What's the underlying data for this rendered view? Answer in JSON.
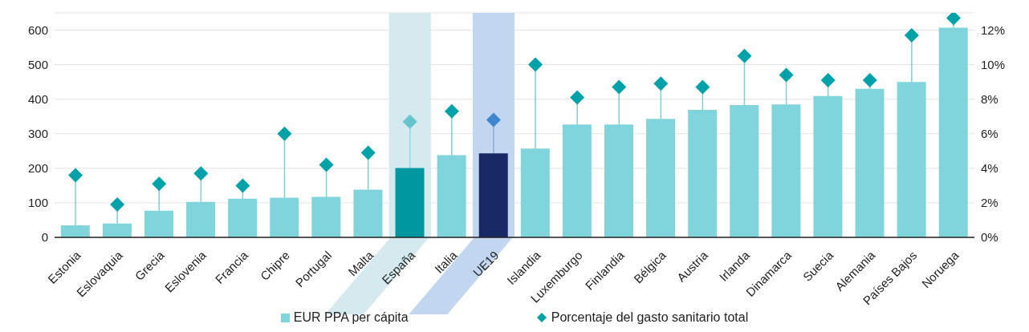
{
  "chart_data": {
    "type": "bar",
    "categories": [
      "Estonia",
      "Eslovaquia",
      "Grecia",
      "Eslovenia",
      "Francia",
      "Chipre",
      "Portugal",
      "Malta",
      "España",
      "Italia",
      "UE19",
      "Islandia",
      "Luxemburgo",
      "Finlandia",
      "Bélgica",
      "Austria",
      "Irlanda",
      "Dinamarca",
      "Suecia",
      "Alemania",
      "Países Bajos",
      "Noruega"
    ],
    "series": [
      {
        "name": "EUR PPA per cápita",
        "color": "#80d5dc",
        "colors": [
          "#80d5dc",
          "#80d5dc",
          "#80d5dc",
          "#80d5dc",
          "#80d5dc",
          "#80d5dc",
          "#80d5dc",
          "#80d5dc",
          "#0097a0",
          "#80d5dc",
          "#182864",
          "#80d5dc",
          "#80d5dc",
          "#80d5dc",
          "#80d5dc",
          "#80d5dc",
          "#80d5dc",
          "#80d5dc",
          "#80d5dc",
          "#80d5dc",
          "#80d5dc",
          "#80d5dc"
        ],
        "values": [
          35,
          40,
          77,
          103,
          112,
          115,
          117,
          138,
          201,
          238,
          243,
          257,
          327,
          327,
          343,
          369,
          383,
          385,
          409,
          430,
          450,
          607
        ]
      },
      {
        "name": "Porcentaje del gasto sanitario total",
        "type": "scatter",
        "axis": "y2",
        "marker": "diamond",
        "color": "#00a2aa",
        "colors": [
          "#00a2aa",
          "#00a2aa",
          "#00a2aa",
          "#00a2aa",
          "#00a2aa",
          "#00a2aa",
          "#00a2aa",
          "#00a2aa",
          "#66c4cc",
          "#00a2aa",
          "#3f86d0",
          "#00a2aa",
          "#00a2aa",
          "#00a2aa",
          "#00a2aa",
          "#00a2aa",
          "#00a2aa",
          "#00a2aa",
          "#00a2aa",
          "#00a2aa",
          "#00a2aa",
          "#00a2aa"
        ],
        "values": [
          3.6,
          1.9,
          3.1,
          3.7,
          3.0,
          6.0,
          4.2,
          4.9,
          6.7,
          7.3,
          6.8,
          10.0,
          8.1,
          8.7,
          8.9,
          8.7,
          10.5,
          9.4,
          9.1,
          9.1,
          11.7,
          12.7
        ]
      }
    ],
    "ylim": [
      0,
      650
    ],
    "yticks": [
      0,
      100,
      200,
      300,
      400,
      500,
      600
    ],
    "y2lim": [
      0,
      13
    ],
    "y2ticks": [
      {
        "value": 0,
        "label": "0%"
      },
      {
        "value": 2,
        "label": "2%"
      },
      {
        "value": 4,
        "label": "4%"
      },
      {
        "value": 6,
        "label": "6%"
      },
      {
        "value": 8,
        "label": "8%"
      },
      {
        "value": 10,
        "label": "10%"
      },
      {
        "value": 12,
        "label": "12%"
      }
    ],
    "bands": [
      {
        "axis": "x",
        "from": "España",
        "to": "España",
        "color": "#d4eaee"
      },
      {
        "axis": "x",
        "from": "UE19",
        "to": "UE19",
        "color": "#c3d6ef"
      }
    ],
    "grid": "y",
    "legend": "bottom"
  }
}
